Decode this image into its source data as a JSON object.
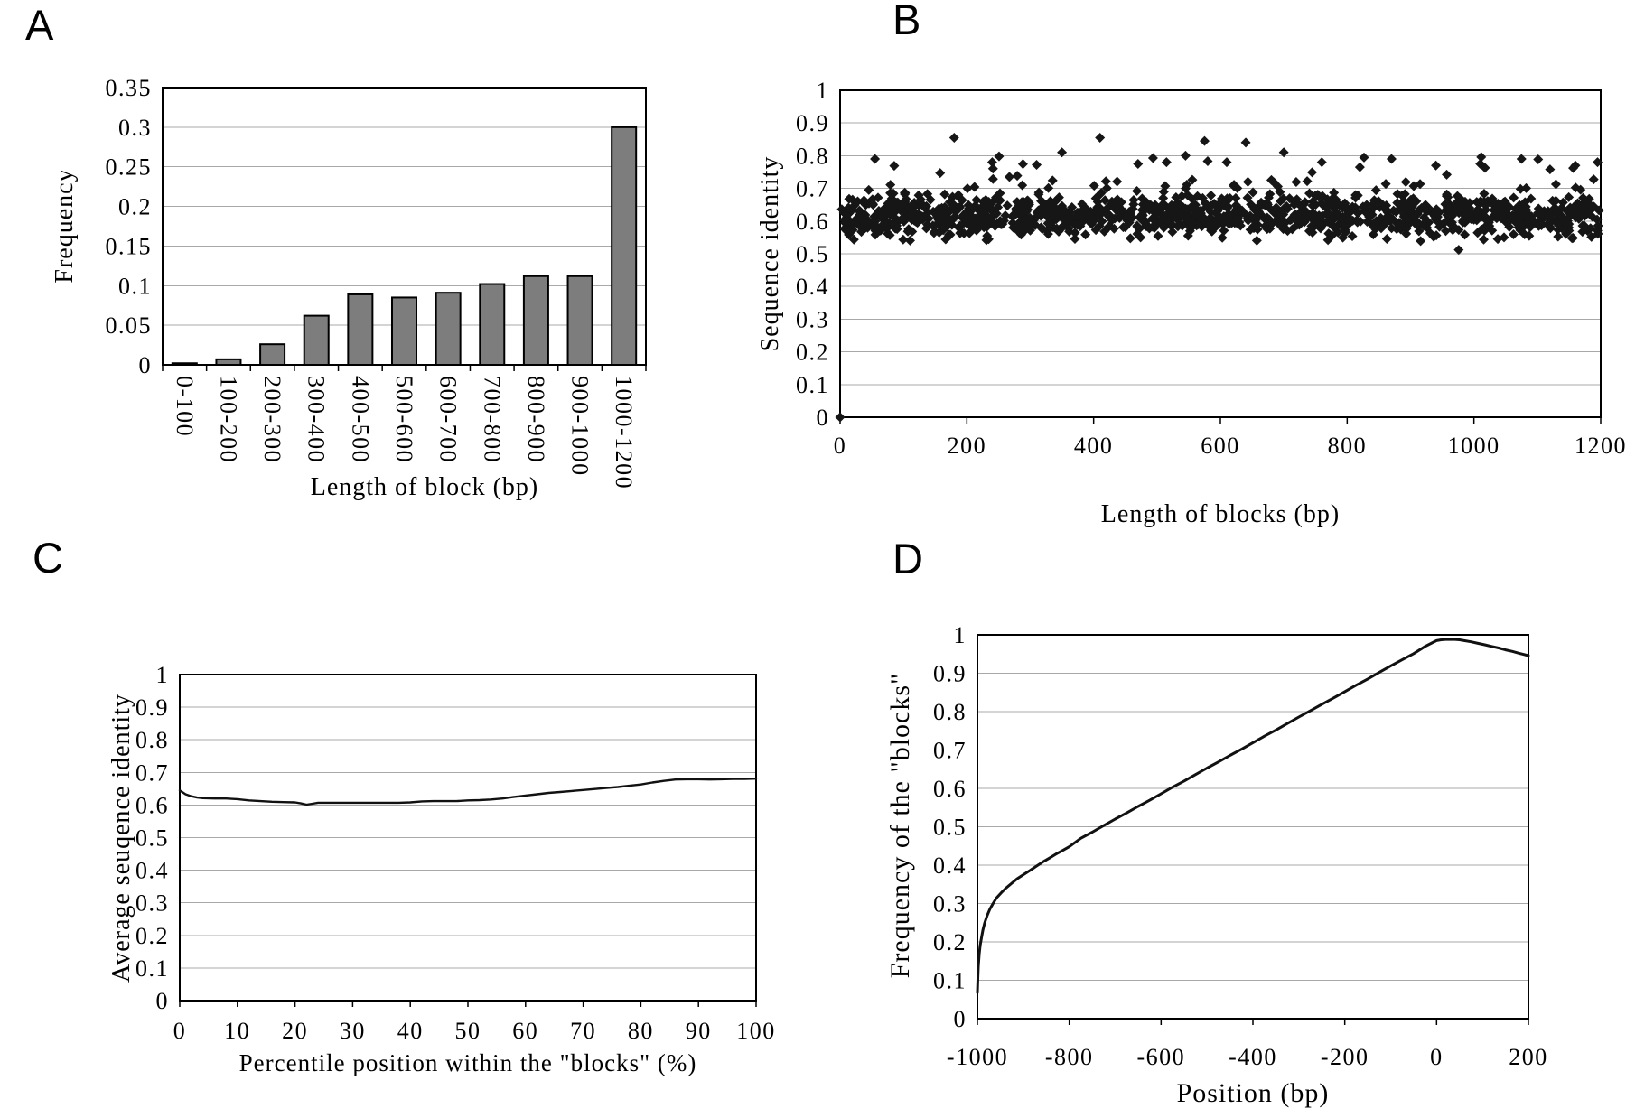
{
  "figure": {
    "panel_letters": [
      "A",
      "B",
      "C",
      "D"
    ]
  },
  "chart_data": [
    {
      "panel": "A",
      "type": "bar",
      "xlabel": "Length of block (bp)",
      "ylabel": "Frequency",
      "categories": [
        "0-100",
        "100-200",
        "200-300",
        "300-400",
        "400-500",
        "500-600",
        "600-700",
        "700-800",
        "800-900",
        "900-1000",
        "1000-1200"
      ],
      "values": [
        0.002,
        0.007,
        0.026,
        0.062,
        0.089,
        0.085,
        0.091,
        0.102,
        0.112,
        0.112,
        0.3
      ],
      "ylim": [
        0,
        0.35
      ],
      "ytick_step": 0.05,
      "yticklabels_top_to_bottom": [
        "0.35",
        "0.3",
        "0.25",
        "0.2",
        "0.15",
        "0.1",
        "0.05",
        "0"
      ],
      "grid": true,
      "bar_color": "#7d7d7d",
      "bar_border_color": "#000000"
    },
    {
      "panel": "B",
      "type": "scatter",
      "xlabel": "Length of blocks (bp)",
      "ylabel": "Sequence identity",
      "xlim": [
        0,
        1200
      ],
      "ylim": [
        0,
        1
      ],
      "xticks": [
        0,
        200,
        400,
        600,
        800,
        1000,
        1200
      ],
      "xticklabels": [
        "0",
        "200",
        "400",
        "600",
        "800",
        "1000",
        "1200"
      ],
      "yticklabels_top_to_bottom": [
        "1",
        "0.9",
        "0.8",
        "0.7",
        "0.6",
        "0.5",
        "0.4",
        "0.3",
        "0.2",
        "0.1",
        "0"
      ],
      "grid": true,
      "marker": "diamond",
      "marker_color": "#161616",
      "distribution": {
        "description": "dense band of points across full x-range",
        "n_band": 1300,
        "band_mean": 0.617,
        "band_sd": 0.032,
        "band_clip": [
          0.535,
          0.73
        ],
        "n_upper_outliers": 40,
        "upper_outlier_range": [
          0.7,
          0.8
        ],
        "seed": 20240915
      },
      "explicit_points": [
        [
          0,
          0
        ],
        [
          55,
          0.79
        ],
        [
          180,
          0.855
        ],
        [
          240,
          0.78
        ],
        [
          310,
          0.772
        ],
        [
          350,
          0.81
        ],
        [
          410,
          0.855
        ],
        [
          470,
          0.775
        ],
        [
          515,
          0.78
        ],
        [
          545,
          0.8
        ],
        [
          575,
          0.845
        ],
        [
          610,
          0.78
        ],
        [
          640,
          0.84
        ],
        [
          700,
          0.81
        ],
        [
          760,
          0.78
        ],
        [
          820,
          0.765
        ],
        [
          870,
          0.79
        ],
        [
          940,
          0.77
        ],
        [
          976,
          0.512
        ],
        [
          1010,
          0.775
        ],
        [
          1075,
          0.79
        ],
        [
          1120,
          0.758
        ],
        [
          1160,
          0.77
        ],
        [
          1195,
          0.78
        ]
      ]
    },
    {
      "panel": "C",
      "type": "line",
      "xlabel": "Percentile position within the \"blocks\" (%)",
      "ylabel": "Average seuqence identity",
      "xlim": [
        0,
        100
      ],
      "ylim": [
        0,
        1
      ],
      "xticks": [
        0,
        10,
        20,
        30,
        40,
        50,
        60,
        70,
        80,
        90,
        100
      ],
      "xticklabels": [
        "0",
        "10",
        "20",
        "30",
        "40",
        "50",
        "60",
        "70",
        "80",
        "90",
        "100"
      ],
      "yticklabels_top_to_bottom": [
        "1",
        "0.9",
        "0.8",
        "0.7",
        "0.6",
        "0.5",
        "0.4",
        "0.3",
        "0.2",
        "0.1",
        "0"
      ],
      "grid": true,
      "x": [
        0,
        1,
        2,
        3,
        4,
        6,
        8,
        10,
        12,
        14,
        16,
        18,
        20,
        21,
        22,
        23,
        24,
        26,
        28,
        30,
        32,
        34,
        36,
        38,
        40,
        42,
        44,
        46,
        48,
        50,
        52,
        54,
        56,
        58,
        60,
        62,
        64,
        66,
        68,
        70,
        72,
        74,
        76,
        78,
        80,
        82,
        84,
        86,
        88,
        90,
        92,
        94,
        96,
        98,
        100
      ],
      "y": [
        0.645,
        0.633,
        0.627,
        0.623,
        0.621,
        0.62,
        0.62,
        0.618,
        0.614,
        0.612,
        0.61,
        0.609,
        0.608,
        0.605,
        0.601,
        0.604,
        0.607,
        0.607,
        0.607,
        0.607,
        0.607,
        0.607,
        0.607,
        0.607,
        0.608,
        0.611,
        0.612,
        0.612,
        0.612,
        0.614,
        0.615,
        0.617,
        0.62,
        0.625,
        0.629,
        0.633,
        0.637,
        0.64,
        0.643,
        0.646,
        0.649,
        0.652,
        0.655,
        0.659,
        0.663,
        0.669,
        0.674,
        0.678,
        0.679,
        0.679,
        0.678,
        0.679,
        0.68,
        0.68,
        0.681
      ]
    },
    {
      "panel": "D",
      "type": "line",
      "xlabel": "Position (bp)",
      "ylabel": "Frequency of the \"blocks\"",
      "xlim": [
        -1000,
        200
      ],
      "ylim": [
        0,
        1
      ],
      "xticks": [
        -1000,
        -800,
        -600,
        -400,
        -200,
        0,
        200
      ],
      "xticklabels": [
        "-1000",
        "-800",
        "-600",
        "-400",
        "-200",
        "0",
        "200"
      ],
      "yticklabels_top_to_bottom": [
        "1",
        "0.9",
        "0.8",
        "0.7",
        "0.6",
        "0.5",
        "0.4",
        "0.3",
        "0.2",
        "0.1",
        "0"
      ],
      "grid": true,
      "x": [
        -1000,
        -999,
        -998,
        -996,
        -994,
        -991,
        -988,
        -984,
        -979,
        -973,
        -966,
        -958,
        -948,
        -938,
        -926,
        -914,
        -900,
        -886,
        -872,
        -858,
        -844,
        -830,
        -815,
        -800,
        -775,
        -750,
        -725,
        -700,
        -675,
        -650,
        -625,
        -600,
        -575,
        -550,
        -525,
        -500,
        -475,
        -450,
        -425,
        -400,
        -375,
        -350,
        -325,
        -300,
        -275,
        -250,
        -225,
        -200,
        -175,
        -150,
        -125,
        -100,
        -75,
        -50,
        -25,
        -10,
        0,
        10,
        20,
        30,
        40,
        50,
        60,
        75,
        90,
        105,
        120,
        135,
        150,
        165,
        180,
        190,
        200
      ],
      "y": [
        0.068,
        0.105,
        0.135,
        0.168,
        0.19,
        0.212,
        0.231,
        0.25,
        0.268,
        0.285,
        0.3,
        0.315,
        0.328,
        0.34,
        0.352,
        0.364,
        0.375,
        0.386,
        0.397,
        0.408,
        0.418,
        0.428,
        0.438,
        0.448,
        0.47,
        0.486,
        0.503,
        0.52,
        0.536,
        0.553,
        0.569,
        0.586,
        0.603,
        0.619,
        0.636,
        0.653,
        0.669,
        0.686,
        0.702,
        0.719,
        0.736,
        0.752,
        0.769,
        0.786,
        0.802,
        0.819,
        0.835,
        0.852,
        0.869,
        0.885,
        0.902,
        0.919,
        0.935,
        0.951,
        0.97,
        0.979,
        0.985,
        0.987,
        0.988,
        0.988,
        0.988,
        0.987,
        0.985,
        0.982,
        0.978,
        0.974,
        0.97,
        0.966,
        0.961,
        0.957,
        0.952,
        0.949,
        0.946
      ]
    }
  ]
}
